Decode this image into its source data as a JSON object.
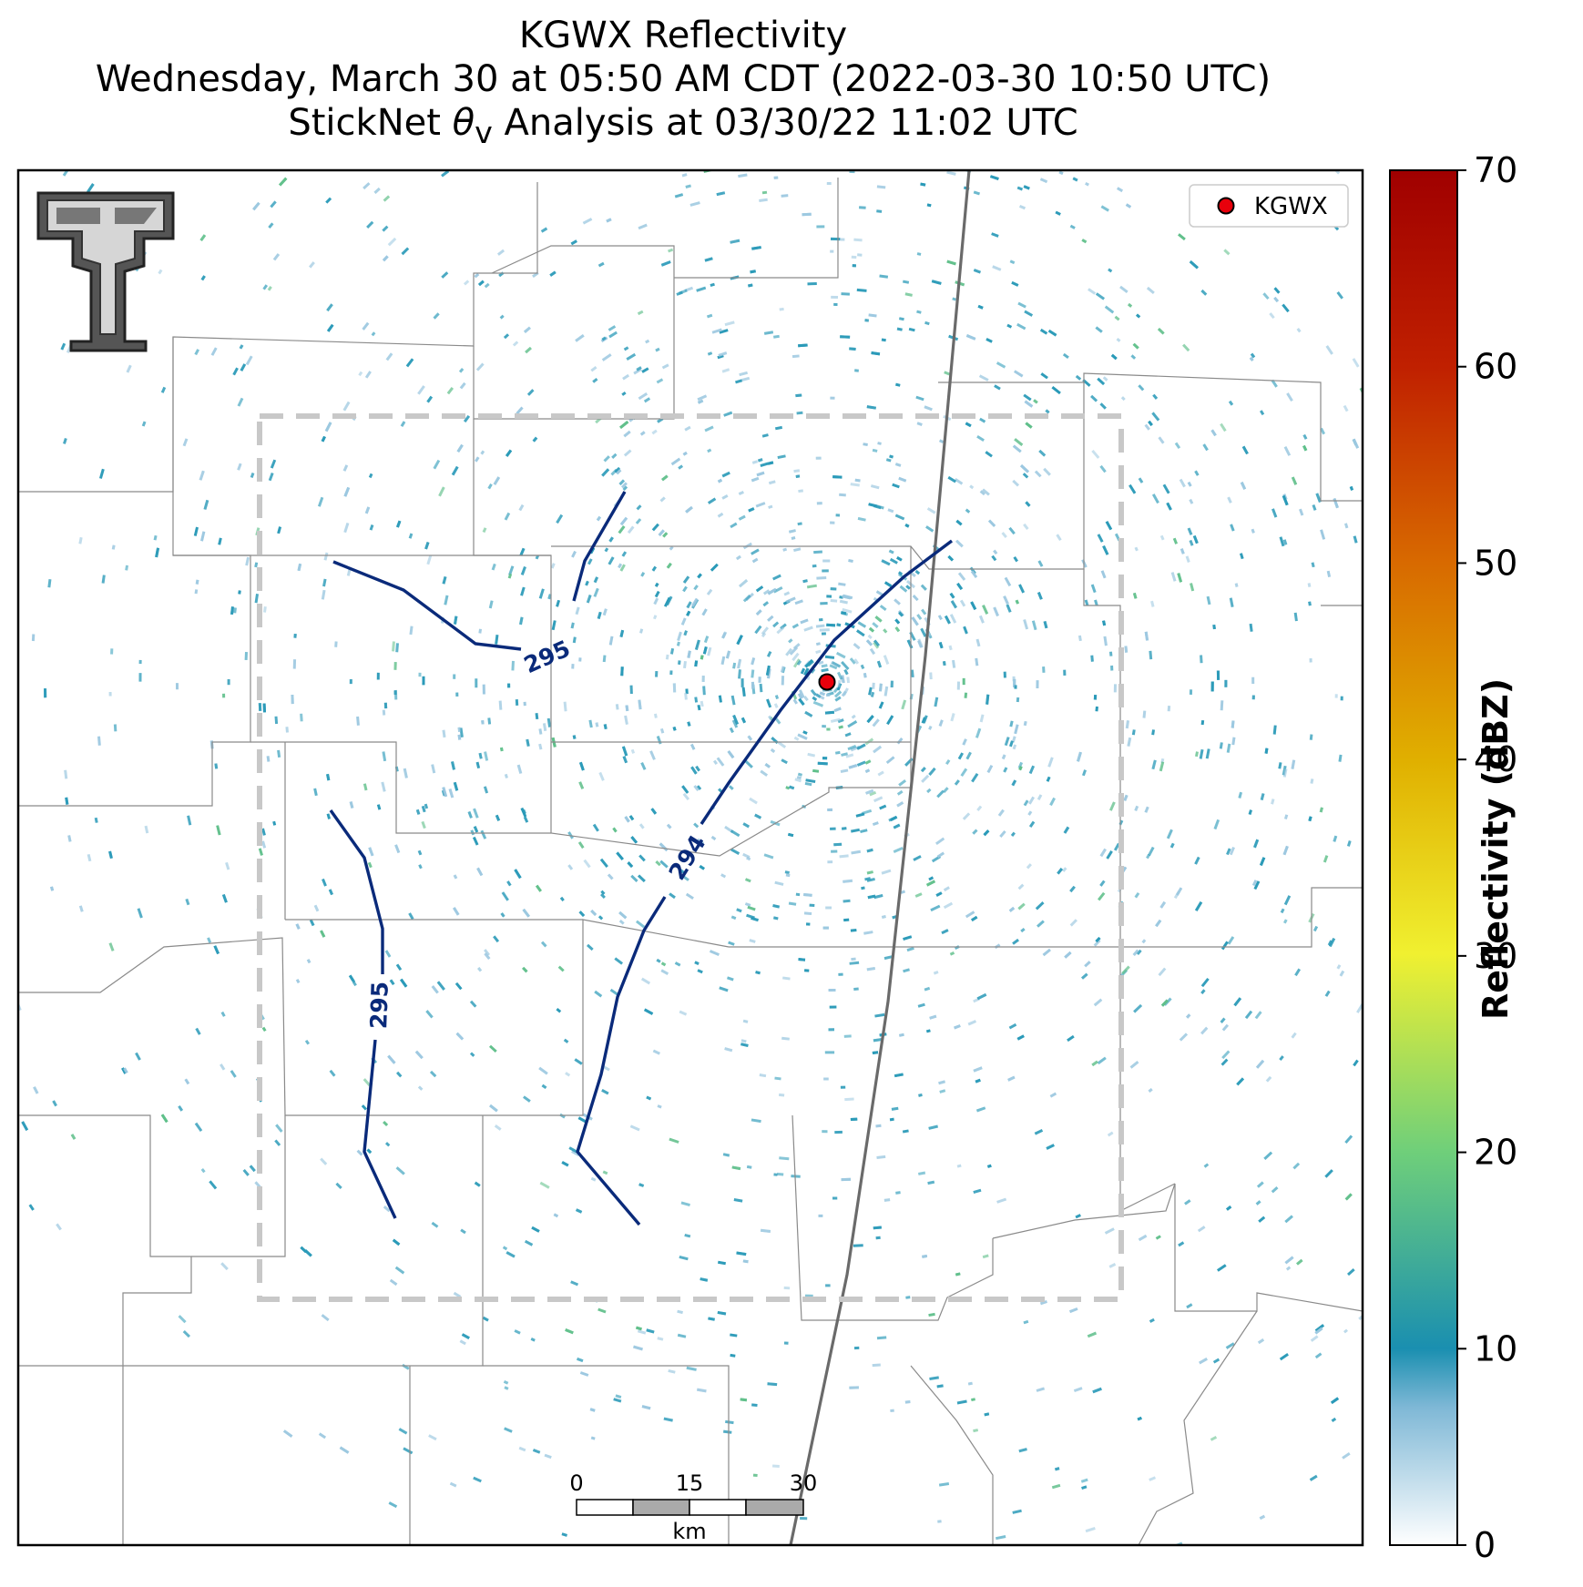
{
  "title": {
    "line1": "KGWX Reflectivity",
    "line2": "Wednesday, March 30 at 05:50 AM CDT (2022-03-30 10:50 UTC)",
    "line3_prefix": "StickNet ",
    "line3_symbol": "θ",
    "line3_subscript": "v",
    "line3_suffix": " Analysis at 03/30/22 11:02 UTC"
  },
  "legend": {
    "label": "KGWX",
    "marker_color": "#e8000b"
  },
  "radar_site": {
    "name": "KGWX"
  },
  "contours": [
    {
      "label": "295",
      "group": "northwest"
    },
    {
      "label": "294",
      "group": "central"
    },
    {
      "label": "295",
      "group": "southwest"
    }
  ],
  "colorbar": {
    "label": "Reflectivity (dBZ)",
    "ticks": [
      "0",
      "10",
      "20",
      "30",
      "40",
      "50",
      "60",
      "70"
    ],
    "range": [
      0,
      70
    ],
    "colors": [
      "#ffffff",
      "#1a8fb0",
      "#6fcf7a",
      "#f0f030",
      "#e0b000",
      "#d86a00",
      "#c02000",
      "#a00000"
    ]
  },
  "scalebar": {
    "ticks": [
      "0",
      "15",
      "30"
    ],
    "unit": "km"
  },
  "logo": {
    "name": "texas-tech-logo"
  },
  "colors": {
    "contour": "#0a2a7a",
    "domain_box": "#c8c8c8",
    "echo_main": "#2a9ab8",
    "echo_light": "#9cc8e0"
  }
}
